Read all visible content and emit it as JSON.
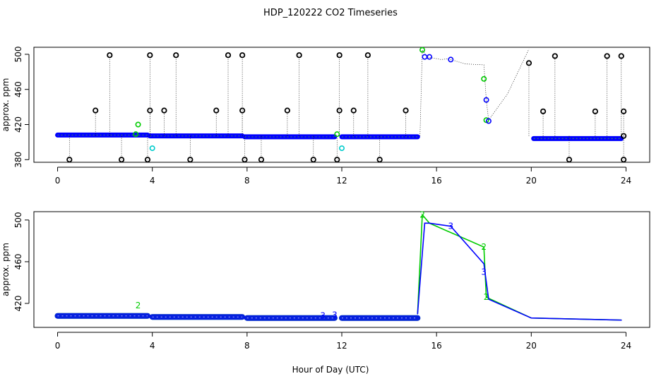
{
  "title": "HDP_120222  CO2 Timeseries",
  "x_axis_label": "Hour of Day (UTC)",
  "colors": {
    "black": "#000000",
    "blue": "#0000ff",
    "green": "#00cc00",
    "cyan": "#00cccc",
    "line": "#000000"
  },
  "chart_data": [
    {
      "type": "scatter",
      "title": "",
      "xlabel": "",
      "ylabel": "approx. ppm",
      "xlim": [
        -1,
        25
      ],
      "ylim": [
        377,
        508
      ],
      "x_ticks": [
        0,
        4,
        8,
        12,
        16,
        20,
        24
      ],
      "y_ticks": [
        380,
        420,
        460,
        500
      ],
      "grid": false,
      "baseline_segments": [
        {
          "x0": 0.0,
          "x1": 3.8,
          "y": 408,
          "color": "#0000ff"
        },
        {
          "x0": 3.9,
          "x1": 7.8,
          "y": 407,
          "color": "#0000ff"
        },
        {
          "x0": 7.9,
          "x1": 11.7,
          "y": 406,
          "color": "#0000ff"
        },
        {
          "x0": 12.0,
          "x1": 15.2,
          "y": 406,
          "color": "#0000ff"
        },
        {
          "x0": 20.1,
          "x1": 23.8,
          "y": 404,
          "color": "#0000ff"
        }
      ],
      "spikes": [
        {
          "x": 0.5,
          "y": 380
        },
        {
          "x": 1.6,
          "y": 436
        },
        {
          "x": 2.2,
          "y": 499
        },
        {
          "x": 2.7,
          "y": 380
        },
        {
          "x": 3.8,
          "y": 380
        },
        {
          "x": 3.9,
          "y": 436
        },
        {
          "x": 3.9,
          "y": 499
        },
        {
          "x": 4.5,
          "y": 436
        },
        {
          "x": 5.0,
          "y": 499
        },
        {
          "x": 5.6,
          "y": 380
        },
        {
          "x": 6.7,
          "y": 436
        },
        {
          "x": 7.2,
          "y": 499
        },
        {
          "x": 7.8,
          "y": 499
        },
        {
          "x": 7.8,
          "y": 436
        },
        {
          "x": 7.9,
          "y": 380
        },
        {
          "x": 8.6,
          "y": 380
        },
        {
          "x": 9.7,
          "y": 436
        },
        {
          "x": 10.2,
          "y": 499
        },
        {
          "x": 10.8,
          "y": 380
        },
        {
          "x": 11.8,
          "y": 380
        },
        {
          "x": 11.9,
          "y": 436
        },
        {
          "x": 11.9,
          "y": 499
        },
        {
          "x": 12.5,
          "y": 436
        },
        {
          "x": 13.1,
          "y": 499
        },
        {
          "x": 13.6,
          "y": 380
        },
        {
          "x": 14.7,
          "y": 436
        },
        {
          "x": 19.9,
          "y": 490
        },
        {
          "x": 21.0,
          "y": 498
        },
        {
          "x": 20.5,
          "y": 435
        },
        {
          "x": 21.6,
          "y": 380
        },
        {
          "x": 22.7,
          "y": 435
        },
        {
          "x": 23.2,
          "y": 498
        },
        {
          "x": 23.8,
          "y": 498
        },
        {
          "x": 23.9,
          "y": 435
        },
        {
          "x": 23.9,
          "y": 380
        },
        {
          "x": 23.9,
          "y": 407
        }
      ],
      "colored_points": [
        {
          "x": 3.4,
          "y": 420,
          "color": "#00cc00"
        },
        {
          "x": 3.3,
          "y": 409,
          "color": "#00cc00"
        },
        {
          "x": 4.0,
          "y": 393,
          "color": "#00cccc"
        },
        {
          "x": 12.0,
          "y": 393,
          "color": "#00cccc"
        },
        {
          "x": 11.8,
          "y": 409,
          "color": "#00cc00"
        },
        {
          "x": 15.4,
          "y": 505,
          "color": "#00cc00"
        },
        {
          "x": 15.5,
          "y": 497,
          "color": "#0000ff"
        },
        {
          "x": 15.7,
          "y": 497,
          "color": "#0000ff"
        },
        {
          "x": 16.6,
          "y": 494,
          "color": "#0000ff"
        },
        {
          "x": 18.0,
          "y": 472,
          "color": "#00cc00"
        },
        {
          "x": 18.1,
          "y": 448,
          "color": "#0000ff"
        },
        {
          "x": 18.1,
          "y": 425,
          "color": "#00cc00"
        },
        {
          "x": 18.2,
          "y": 424,
          "color": "#0000ff"
        }
      ],
      "dotted_paths": [
        [
          [
            15.3,
            407
          ],
          [
            15.4,
            505
          ],
          [
            15.6,
            497
          ],
          [
            16.2,
            494
          ],
          [
            16.5,
            495
          ],
          [
            17.2,
            489
          ],
          [
            18.0,
            488
          ],
          [
            18.1,
            448
          ],
          [
            18.2,
            425
          ],
          [
            19.0,
            455
          ],
          [
            19.9,
            506
          ]
        ]
      ]
    },
    {
      "type": "line",
      "title": "",
      "xlabel": "Hour of Day (UTC)",
      "ylabel": "approx. ppm",
      "xlim": [
        -1,
        25
      ],
      "ylim": [
        397,
        508
      ],
      "x_ticks": [
        0,
        4,
        8,
        12,
        16,
        20,
        24
      ],
      "y_ticks": [
        420,
        460,
        500
      ],
      "grid": false,
      "series": [
        {
          "name": "2",
          "color": "#00cc00",
          "segments": [
            [
              [
                0.0,
                408
              ],
              [
                3.8,
                408
              ]
            ],
            [
              [
                4.0,
                407
              ],
              [
                7.8,
                407
              ]
            ],
            [
              [
                8.0,
                406
              ],
              [
                11.7,
                406
              ]
            ],
            [
              [
                12.0,
                406
              ],
              [
                15.2,
                406
              ]
            ],
            [
              [
                15.2,
                410
              ],
              [
                15.4,
                505
              ],
              [
                15.7,
                497
              ],
              [
                18.0,
                474
              ],
              [
                18.1,
                426
              ],
              [
                20.0,
                406
              ],
              [
                23.8,
                404
              ]
            ]
          ],
          "labels": [
            {
              "x": 3.4,
              "y": 418,
              "text": "2"
            },
            {
              "x": 15.4,
              "y": 505,
              "text": "2"
            },
            {
              "x": 18.0,
              "y": 474,
              "text": "2"
            },
            {
              "x": 18.1,
              "y": 426,
              "text": "2"
            }
          ]
        },
        {
          "name": "3",
          "color": "#0000ff",
          "segments": [
            [
              [
                0.0,
                408
              ],
              [
                3.8,
                408
              ]
            ],
            [
              [
                4.0,
                407
              ],
              [
                7.8,
                407
              ]
            ],
            [
              [
                8.0,
                406
              ],
              [
                11.7,
                406
              ]
            ],
            [
              [
                12.0,
                406
              ],
              [
                15.2,
                406
              ]
            ],
            [
              [
                15.2,
                410
              ],
              [
                15.5,
                497
              ],
              [
                15.7,
                497
              ],
              [
                16.6,
                494
              ],
              [
                18.0,
                458
              ],
              [
                18.2,
                424
              ],
              [
                20.0,
                406
              ],
              [
                23.8,
                404
              ]
            ]
          ],
          "labels": [
            {
              "x": 11.2,
              "y": 408,
              "text": "3"
            },
            {
              "x": 11.7,
              "y": 409,
              "text": "3"
            },
            {
              "x": 16.6,
              "y": 494,
              "text": "3"
            },
            {
              "x": 18.0,
              "y": 450,
              "text": "3"
            }
          ]
        }
      ]
    }
  ]
}
